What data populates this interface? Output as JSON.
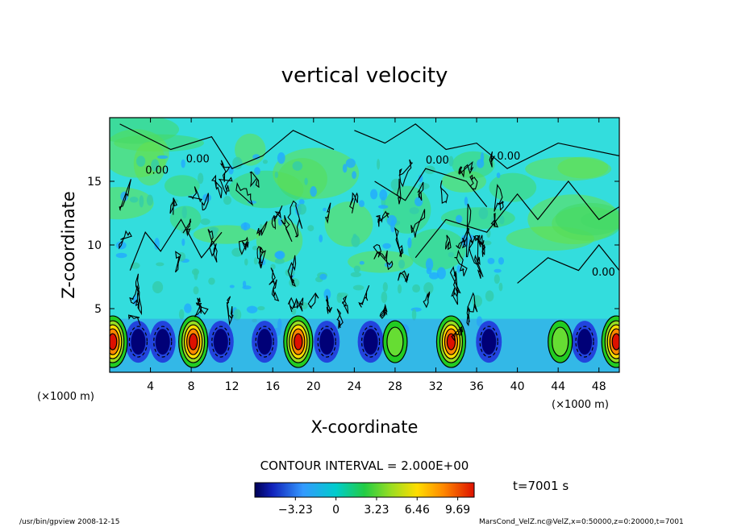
{
  "chart_data": {
    "type": "heatmap",
    "title": "vertical velocity",
    "xlabel": "X-coordinate",
    "ylabel": "Z-coordinate",
    "x_unit": "(×1000 m)",
    "xlim": [
      0,
      50
    ],
    "ylim": [
      0,
      20
    ],
    "x_ticks": [
      4,
      8,
      12,
      16,
      20,
      24,
      28,
      32,
      36,
      40,
      44,
      48
    ],
    "y_ticks": [
      5,
      10,
      15
    ],
    "contour_interval_label": "CONTOUR INTERVAL = 2.000E+00",
    "contour_labels": [
      "0.00",
      "0.00",
      "0.00",
      "0.00",
      "0.00"
    ],
    "colorbar": {
      "min": -6.46,
      "max": 11.0,
      "tick_values": [
        -3.23,
        0,
        3.23,
        6.46,
        9.69
      ],
      "tick_labels": [
        "−3.23",
        "0",
        "3.23",
        "6.46",
        "9.69"
      ]
    },
    "updrafts_x": [
      0.3,
      8.2,
      18.5,
      28.0,
      33.5,
      44.2,
      49.7
    ],
    "downdrafts_x": [
      2.8,
      5.2,
      10.9,
      15.2,
      21.3,
      25.6,
      37.2,
      46.6
    ],
    "time_label": "t=7001 s",
    "colors": {
      "deep_negative": "#000077",
      "negative": "#2233ee",
      "zero": "#00cccc",
      "positive": "#22cc22",
      "strong_positive": "#ffcc00",
      "max_positive": "#dd1100"
    }
  },
  "footer": {
    "left": "/usr/bin/gpview   2008-12-15",
    "right": "MarsCond_VelZ.nc@VelZ,x=0:50000,z=0:20000,t=7001"
  }
}
